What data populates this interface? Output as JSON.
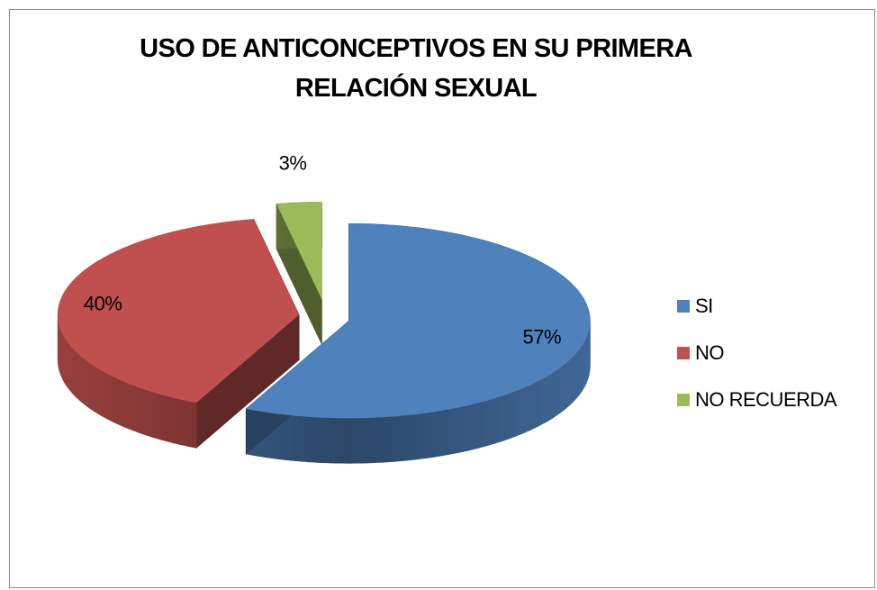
{
  "chart_data": {
    "type": "pie",
    "title": "USO DE ANTICONCEPTIVOS EN SU PRIMERA RELACIÓN SEXUAL",
    "categories": [
      "SI",
      "NO",
      "NO RECUERDA"
    ],
    "values": [
      57,
      40,
      3
    ],
    "value_labels": [
      "57%",
      "40%",
      "3%"
    ],
    "colors": [
      "#4f81bd",
      "#c0504d",
      "#9bbb59"
    ],
    "legend": "right"
  }
}
